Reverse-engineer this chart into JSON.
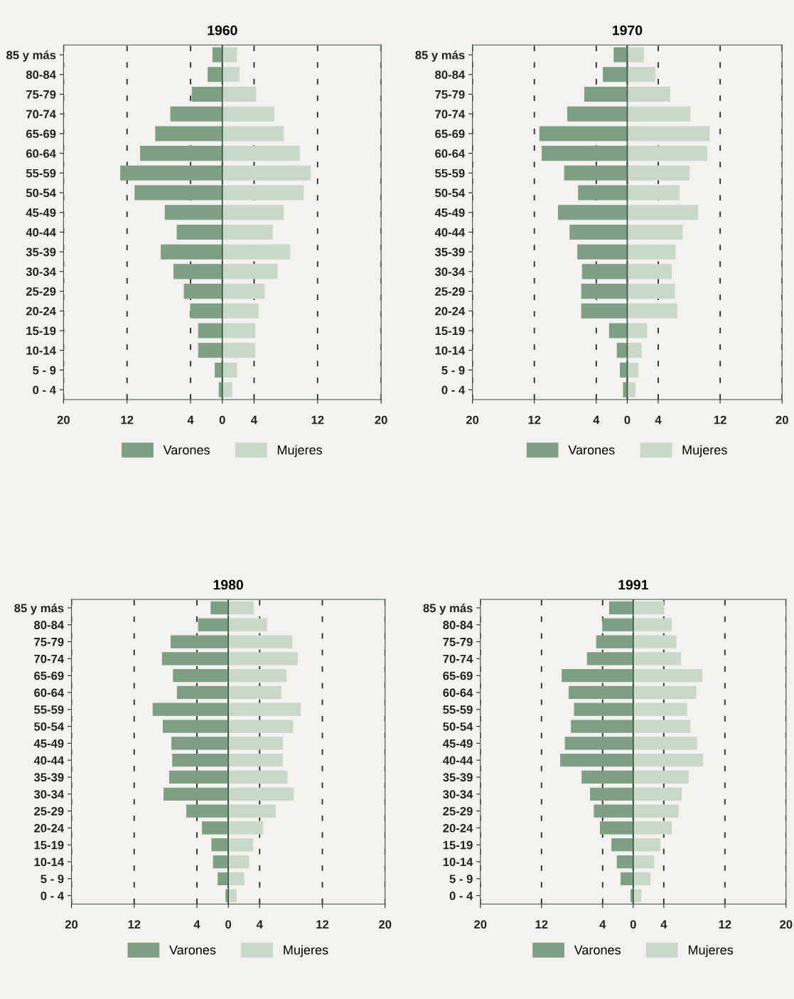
{
  "chart_data": [
    {
      "type": "bar",
      "title": "1960",
      "orientation": "horizontal",
      "stacked": true,
      "categories": [
        "85 y más",
        "80-84",
        "75-79",
        "70-74",
        "65-69",
        "60-64",
        "55-59",
        "50-54",
        "45-49",
        "40-44",
        "35-39",
        "30-34",
        "25-29",
        "20-24",
        "15-19",
        "10-14",
        "5 - 9",
        "0 - 4"
      ],
      "series": [
        {
          "name": "Varones",
          "color": "#7f9f84",
          "values": [
            -1.2,
            -1.8,
            -3.8,
            -6.5,
            -8.4,
            -10.3,
            -12.8,
            -11.0,
            -7.2,
            -5.7,
            -7.7,
            -6.1,
            -4.8,
            -4.0,
            -3.0,
            -3.0,
            -0.9,
            -0.4
          ]
        },
        {
          "name": "Mujeres",
          "color": "#c9d8c9",
          "values": [
            1.8,
            2.1,
            4.2,
            6.5,
            7.7,
            9.7,
            11.1,
            10.2,
            7.7,
            6.3,
            8.5,
            6.9,
            5.3,
            4.5,
            4.1,
            4.1,
            1.8,
            1.2
          ]
        }
      ],
      "xlim": [
        -20,
        20
      ],
      "xticks": [
        {
          "value": -20,
          "label": "20"
        },
        {
          "value": -12,
          "label": "12"
        },
        {
          "value": -4,
          "label": "4"
        },
        0,
        4,
        12,
        20
      ],
      "grid": "x",
      "legend": "bottom"
    },
    {
      "type": "bar",
      "title": "1970",
      "orientation": "horizontal",
      "stacked": true,
      "categories": [
        "85 y más",
        "80-84",
        "75-79",
        "70-74",
        "65-69",
        "60-64",
        "55-59",
        "50-54",
        "45-49",
        "40-44",
        "35-39",
        "30-34",
        "25-29",
        "20-24",
        "15-19",
        "10-14",
        "5 - 9",
        "0 - 4"
      ],
      "series": [
        {
          "name": "Varones",
          "color": "#7f9f84",
          "values": [
            -1.7,
            -3.1,
            -5.5,
            -7.7,
            -11.3,
            -11.0,
            -8.1,
            -6.3,
            -8.9,
            -7.4,
            -6.4,
            -5.8,
            -5.9,
            -5.9,
            -2.3,
            -1.3,
            -0.9,
            -0.5
          ]
        },
        {
          "name": "Mujeres",
          "color": "#c9d8c9",
          "values": [
            2.1,
            3.6,
            5.5,
            8.1,
            10.6,
            10.3,
            8.0,
            6.7,
            9.1,
            7.1,
            6.2,
            5.7,
            6.1,
            6.4,
            2.5,
            1.8,
            1.4,
            1.0
          ]
        }
      ],
      "xlim": [
        -20,
        20
      ],
      "xticks": [
        {
          "value": -20,
          "label": "20"
        },
        {
          "value": -12,
          "label": "12"
        },
        {
          "value": -4,
          "label": "4"
        },
        0,
        4,
        12,
        20
      ],
      "grid": "x",
      "legend": "bottom"
    },
    {
      "type": "bar",
      "title": "1980",
      "orientation": "horizontal",
      "stacked": true,
      "categories": [
        "85 y más",
        "80-84",
        "75-79",
        "70-74",
        "65-69",
        "60-64",
        "55-59",
        "50-54",
        "45-49",
        "40-44",
        "35-39",
        "30-34",
        "25-29",
        "20-24",
        "15-19",
        "10-14",
        "5 - 9",
        "0 - 4"
      ],
      "series": [
        {
          "name": "Varones",
          "color": "#7f9f84",
          "values": [
            -2.2,
            -3.8,
            -7.3,
            -8.4,
            -7.0,
            -6.5,
            -9.6,
            -8.3,
            -7.2,
            -7.1,
            -7.5,
            -8.2,
            -5.3,
            -3.3,
            -2.1,
            -1.9,
            -1.3,
            -0.3
          ]
        },
        {
          "name": "Mujeres",
          "color": "#c9d8c9",
          "values": [
            3.2,
            4.9,
            8.1,
            8.8,
            7.4,
            6.7,
            9.2,
            8.2,
            6.9,
            6.9,
            7.5,
            8.3,
            6.0,
            4.4,
            3.1,
            2.6,
            2.0,
            1.0
          ]
        }
      ],
      "xlim": [
        -20,
        20
      ],
      "xticks": [
        {
          "value": -20,
          "label": "20"
        },
        {
          "value": -12,
          "label": "12"
        },
        {
          "value": -4,
          "label": "4"
        },
        0,
        4,
        12,
        20
      ],
      "grid": "x",
      "legend": "bottom"
    },
    {
      "type": "bar",
      "title": "1991",
      "orientation": "horizontal",
      "stacked": true,
      "categories": [
        "85 y más",
        "80-84",
        "75-79",
        "70-74",
        "65-69",
        "60-64",
        "55-59",
        "50-54",
        "45-49",
        "40-44",
        "35-39",
        "30-34",
        "25-29",
        "20-24",
        "15-19",
        "10-14",
        "5 - 9",
        "0 - 4"
      ],
      "series": [
        {
          "name": "Varones",
          "color": "#7f9f84",
          "values": [
            -3.1,
            -4.0,
            -4.8,
            -6.0,
            -9.3,
            -8.4,
            -7.7,
            -8.1,
            -8.9,
            -9.5,
            -6.7,
            -5.6,
            -5.1,
            -4.3,
            -2.8,
            -2.1,
            -1.6,
            -0.3
          ]
        },
        {
          "name": "Mujeres",
          "color": "#c9d8c9",
          "values": [
            4.0,
            5.0,
            5.6,
            6.2,
            9.0,
            8.2,
            7.0,
            7.4,
            8.3,
            9.1,
            7.2,
            6.3,
            5.9,
            5.0,
            3.5,
            2.7,
            2.2,
            1.0
          ]
        }
      ],
      "xlim": [
        -20,
        20
      ],
      "xticks": [
        {
          "value": -20,
          "label": "20"
        },
        {
          "value": -12,
          "label": "12"
        },
        {
          "value": -4,
          "label": "4"
        },
        0,
        4,
        12,
        20
      ],
      "grid": "x",
      "legend": "bottom"
    }
  ]
}
